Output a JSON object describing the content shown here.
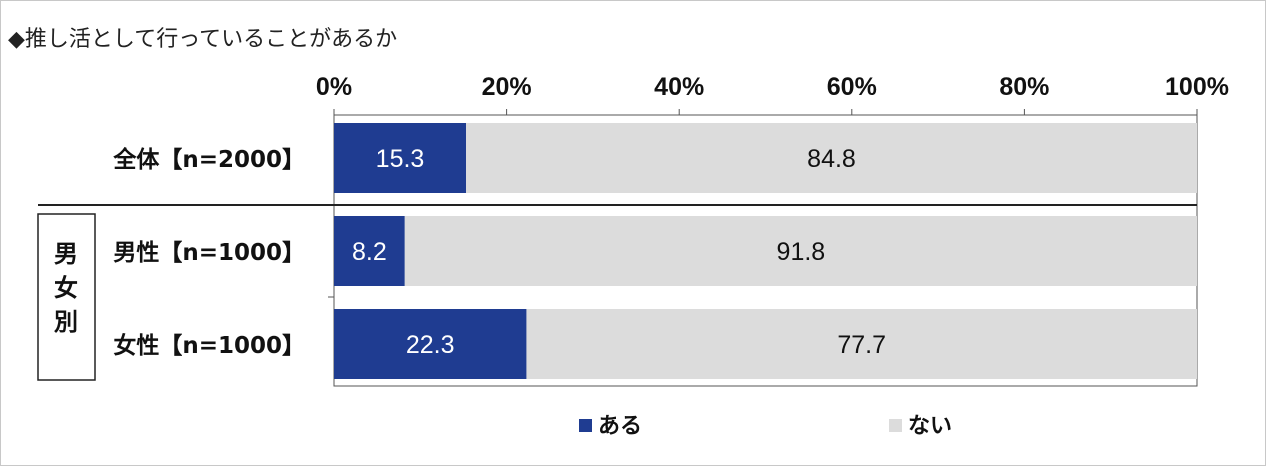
{
  "title": "◆推し活として行っていることがあるか",
  "chart_data": {
    "type": "bar",
    "orientation": "horizontal",
    "stacked": true,
    "categories": [
      "全体【n=2000】",
      "男性【n=1000】",
      "女性【n=1000】"
    ],
    "group_label": "男女別",
    "series": [
      {
        "name": "ある",
        "values": [
          15.3,
          8.2,
          22.3
        ],
        "color": "#1f3c91"
      },
      {
        "name": "ない",
        "values": [
          84.8,
          91.8,
          77.7
        ],
        "color": "#dcdcdc"
      }
    ],
    "xlim": [
      0,
      100
    ],
    "ticks": [
      "0%",
      "20%",
      "40%",
      "60%",
      "80%",
      "100%"
    ],
    "legend": "bottom",
    "grid": false
  }
}
